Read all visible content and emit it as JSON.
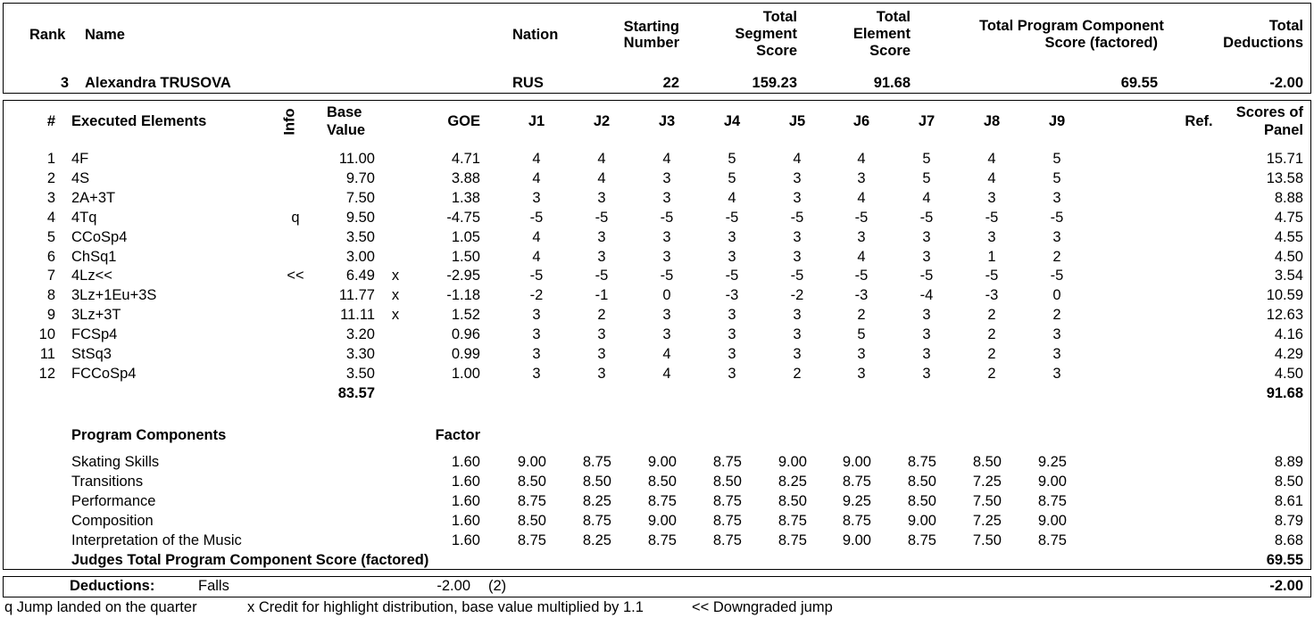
{
  "header": {
    "labels": {
      "rank": "Rank",
      "name": "Name",
      "nation": "Nation",
      "starting_number": [
        "Starting",
        "Number"
      ],
      "total_segment_score": [
        "Total",
        "Segment",
        "Score"
      ],
      "total_element_score": [
        "Total",
        "Element",
        "Score"
      ],
      "total_pcs": [
        "Total Program Component",
        "Score (factored)"
      ],
      "total_deductions": [
        "Total",
        "Deductions"
      ]
    },
    "values": {
      "rank": "3",
      "name": "Alexandra TRUSOVA",
      "nation": "RUS",
      "starting_number": "22",
      "total_segment_score": "159.23",
      "total_element_score": "91.68",
      "total_pcs": "69.55",
      "total_deductions": "-2.00"
    }
  },
  "elements_table": {
    "headers": {
      "num": "#",
      "element": "Executed Elements",
      "info": "Info",
      "base_value": [
        "Base",
        "Value"
      ],
      "goe": "GOE",
      "judges": [
        "J1",
        "J2",
        "J3",
        "J4",
        "J5",
        "J6",
        "J7",
        "J8",
        "J9"
      ],
      "ref": "Ref.",
      "panel": [
        "Scores of",
        "Panel"
      ]
    },
    "rows": [
      {
        "num": "1",
        "element": "4F",
        "info": "",
        "base": "11.00",
        "x": "",
        "goe": "4.71",
        "judges": [
          "4",
          "4",
          "4",
          "5",
          "4",
          "4",
          "5",
          "4",
          "5"
        ],
        "panel": "15.71"
      },
      {
        "num": "2",
        "element": "4S",
        "info": "",
        "base": "9.70",
        "x": "",
        "goe": "3.88",
        "judges": [
          "4",
          "4",
          "3",
          "5",
          "3",
          "3",
          "5",
          "4",
          "5"
        ],
        "panel": "13.58"
      },
      {
        "num": "3",
        "element": "2A+3T",
        "info": "",
        "base": "7.50",
        "x": "",
        "goe": "1.38",
        "judges": [
          "3",
          "3",
          "3",
          "4",
          "3",
          "4",
          "4",
          "3",
          "3"
        ],
        "panel": "8.88"
      },
      {
        "num": "4",
        "element": "4Tq",
        "info": "q",
        "base": "9.50",
        "x": "",
        "goe": "-4.75",
        "judges": [
          "-5",
          "-5",
          "-5",
          "-5",
          "-5",
          "-5",
          "-5",
          "-5",
          "-5"
        ],
        "panel": "4.75"
      },
      {
        "num": "5",
        "element": "CCoSp4",
        "info": "",
        "base": "3.50",
        "x": "",
        "goe": "1.05",
        "judges": [
          "4",
          "3",
          "3",
          "3",
          "3",
          "3",
          "3",
          "3",
          "3"
        ],
        "panel": "4.55"
      },
      {
        "num": "6",
        "element": "ChSq1",
        "info": "",
        "base": "3.00",
        "x": "",
        "goe": "1.50",
        "judges": [
          "4",
          "3",
          "3",
          "3",
          "3",
          "4",
          "3",
          "1",
          "2"
        ],
        "panel": "4.50"
      },
      {
        "num": "7",
        "element": "4Lz<<",
        "info": "<<",
        "base": "6.49",
        "x": "x",
        "goe": "-2.95",
        "judges": [
          "-5",
          "-5",
          "-5",
          "-5",
          "-5",
          "-5",
          "-5",
          "-5",
          "-5"
        ],
        "panel": "3.54"
      },
      {
        "num": "8",
        "element": "3Lz+1Eu+3S",
        "info": "",
        "base": "11.77",
        "x": "x",
        "goe": "-1.18",
        "judges": [
          "-2",
          "-1",
          "0",
          "-3",
          "-2",
          "-3",
          "-4",
          "-3",
          "0"
        ],
        "panel": "10.59"
      },
      {
        "num": "9",
        "element": "3Lz+3T",
        "info": "",
        "base": "11.11",
        "x": "x",
        "goe": "1.52",
        "judges": [
          "3",
          "2",
          "3",
          "3",
          "3",
          "2",
          "3",
          "2",
          "2"
        ],
        "panel": "12.63"
      },
      {
        "num": "10",
        "element": "FCSp4",
        "info": "",
        "base": "3.20",
        "x": "",
        "goe": "0.96",
        "judges": [
          "3",
          "3",
          "3",
          "3",
          "3",
          "5",
          "3",
          "2",
          "3"
        ],
        "panel": "4.16"
      },
      {
        "num": "11",
        "element": "StSq3",
        "info": "",
        "base": "3.30",
        "x": "",
        "goe": "0.99",
        "judges": [
          "3",
          "3",
          "4",
          "3",
          "3",
          "3",
          "3",
          "2",
          "3"
        ],
        "panel": "4.29"
      },
      {
        "num": "12",
        "element": "FCCoSp4",
        "info": "",
        "base": "3.50",
        "x": "",
        "goe": "1.00",
        "judges": [
          "3",
          "3",
          "4",
          "3",
          "2",
          "3",
          "3",
          "2",
          "3"
        ],
        "panel": "4.50"
      }
    ],
    "total_base": "83.57",
    "total_panel": "91.68"
  },
  "program_components": {
    "title": "Program Components",
    "factor_label": "Factor",
    "rows": [
      {
        "name": "Skating Skills",
        "factor": "1.60",
        "judges": [
          "9.00",
          "8.75",
          "9.00",
          "8.75",
          "9.00",
          "9.00",
          "8.75",
          "8.50",
          "9.25"
        ],
        "score": "8.89"
      },
      {
        "name": "Transitions",
        "factor": "1.60",
        "judges": [
          "8.50",
          "8.50",
          "8.50",
          "8.50",
          "8.25",
          "8.75",
          "8.50",
          "7.25",
          "9.00"
        ],
        "score": "8.50"
      },
      {
        "name": "Performance",
        "factor": "1.60",
        "judges": [
          "8.75",
          "8.25",
          "8.75",
          "8.75",
          "8.50",
          "9.25",
          "8.50",
          "7.50",
          "8.75"
        ],
        "score": "8.61"
      },
      {
        "name": "Composition",
        "factor": "1.60",
        "judges": [
          "8.50",
          "8.75",
          "9.00",
          "8.75",
          "8.75",
          "8.75",
          "9.00",
          "7.25",
          "9.00"
        ],
        "score": "8.79"
      },
      {
        "name": "Interpretation of the Music",
        "factor": "1.60",
        "judges": [
          "8.75",
          "8.25",
          "8.75",
          "8.75",
          "8.75",
          "9.00",
          "8.75",
          "7.50",
          "8.75"
        ],
        "score": "8.68"
      }
    ],
    "total_label": "Judges Total Program Component Score (factored)",
    "total": "69.55"
  },
  "deductions": {
    "label": "Deductions:",
    "type": "Falls",
    "value": "-2.00",
    "count": "(2)",
    "total": "-2.00"
  },
  "legend": {
    "q": "q Jump landed on the quarter",
    "x": "x Credit for highlight distribution, base value multiplied by 1.1",
    "downgrade": "<< Downgraded jump"
  }
}
